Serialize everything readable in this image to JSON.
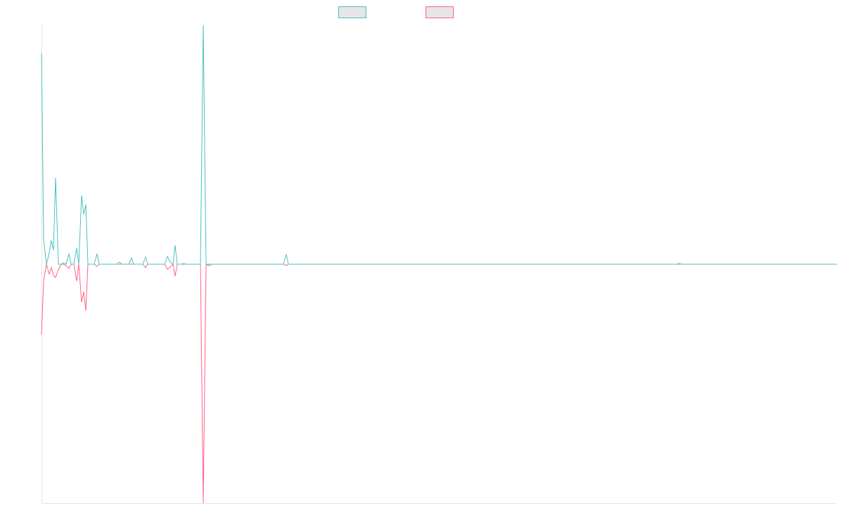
{
  "chart_data": {
    "type": "line",
    "x": [
      0,
      3,
      7,
      11,
      14,
      17,
      20,
      24,
      28,
      31,
      35,
      39,
      42,
      46,
      50,
      53,
      57,
      60,
      63,
      66,
      75,
      79,
      82,
      107,
      111,
      114,
      124,
      128,
      131,
      144,
      148,
      151,
      175,
      179,
      183,
      187,
      190,
      193,
      199,
      202,
      205,
      226,
      230,
      234,
      238,
      242,
      344,
      348,
      351,
      903,
      907,
      910,
      1131
    ],
    "series": [
      {
        "color": "#4bc0c0",
        "values": [
          300,
          36,
          0,
          16,
          34,
          20,
          123,
          0,
          0,
          2,
          0,
          15,
          0,
          0,
          23,
          0,
          98,
          71,
          85,
          0,
          0,
          15,
          0,
          0,
          3,
          0,
          0,
          9,
          0,
          0,
          10,
          0,
          0,
          11,
          3,
          0,
          27,
          0,
          0,
          1,
          0,
          0,
          340,
          0,
          0,
          0,
          0,
          14,
          0,
          0,
          1,
          0,
          0
        ]
      },
      {
        "color": "#ff6384",
        "values": [
          -100,
          -24,
          0,
          -14,
          -5,
          -16,
          -19,
          -8,
          0,
          0,
          -2,
          -6,
          0,
          0,
          -24,
          0,
          -54,
          -39,
          -66,
          0,
          0,
          -3,
          0,
          0,
          0,
          0,
          0,
          0,
          0,
          0,
          -5,
          0,
          0,
          -7,
          -4,
          0,
          -17,
          0,
          0,
          0,
          0,
          0,
          -340,
          0,
          -2,
          0,
          0,
          -2,
          0,
          0,
          0,
          0,
          0
        ]
      }
    ],
    "xlim": [
      0,
      1131
    ],
    "ylim": [
      -340,
      340
    ]
  }
}
